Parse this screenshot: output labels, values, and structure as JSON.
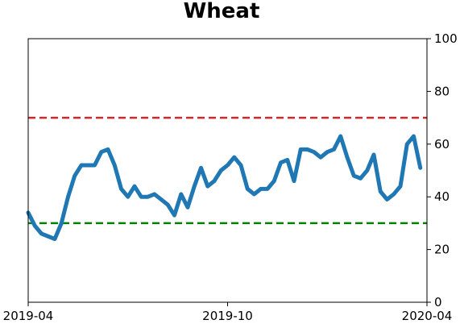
{
  "chart_data": {
    "type": "line",
    "title": "Wheat",
    "categories": [
      null,
      null,
      null,
      null,
      null,
      null,
      null,
      null,
      null,
      null,
      null,
      null,
      null,
      null,
      null,
      null,
      null,
      null,
      null,
      null,
      null,
      null,
      null,
      null,
      null,
      null,
      null,
      null,
      null,
      null,
      null,
      null,
      null,
      null,
      null,
      null,
      null,
      null,
      null,
      null,
      null,
      null,
      null,
      null,
      null,
      null,
      null,
      null,
      null,
      null,
      null,
      null,
      null,
      null,
      null,
      null,
      null,
      null,
      null,
      null,
      null
    ],
    "series": [
      {
        "color": "#1f77b4",
        "values": [
          34,
          29,
          26,
          25,
          24,
          30,
          40,
          48,
          52,
          52,
          52,
          57,
          58,
          52,
          43,
          40,
          44,
          40,
          40,
          41,
          39,
          37,
          33,
          41,
          36,
          44,
          51,
          44,
          46,
          50,
          52,
          55,
          52,
          43,
          41,
          43,
          43,
          46,
          53,
          54,
          46,
          58,
          58,
          57,
          55,
          57,
          58,
          63,
          55,
          48,
          47,
          50,
          56,
          42,
          39,
          41,
          44,
          60,
          63,
          51,
          null
        ]
      }
    ],
    "xticks": [
      "2019-04",
      "2019-10",
      "2020-04"
    ],
    "ylim": [
      0,
      100
    ],
    "yticks": [
      0,
      20,
      40,
      60,
      80,
      100
    ],
    "reference_lines": [
      {
        "value": 70,
        "color": "#d62728"
      },
      {
        "value": 30,
        "color": "#008000"
      }
    ]
  }
}
